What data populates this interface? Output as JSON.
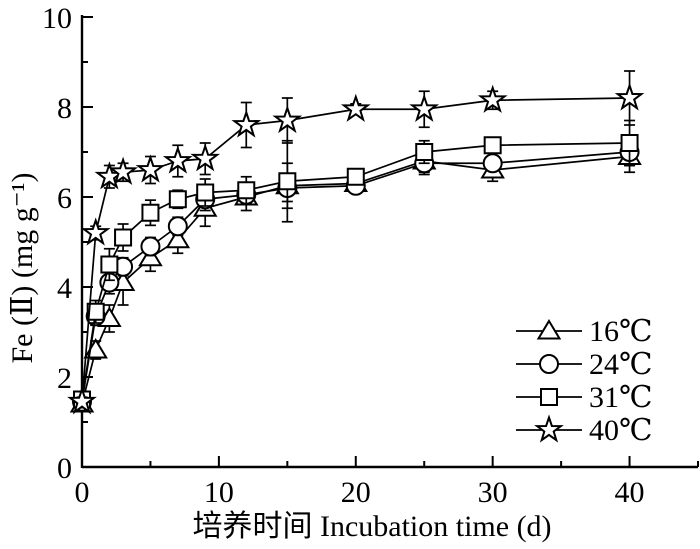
{
  "figure": {
    "background_color": "#ffffff",
    "foreground_color": "#000000"
  },
  "chart_data": {
    "type": "line",
    "title": "",
    "xlabel": "培养时间 Incubation time (d)",
    "ylabel": "Fe (Ⅱ) (mg g⁻¹)",
    "xlim": [
      0,
      45
    ],
    "ylim": [
      0,
      10
    ],
    "x_major_ticks": [
      0,
      10,
      20,
      30,
      40
    ],
    "x_minor_ticks": [
      5,
      15,
      25,
      35,
      45
    ],
    "y_major_ticks": [
      0,
      2,
      4,
      6,
      8,
      10
    ],
    "y_minor_ticks": [
      1,
      3,
      5,
      7,
      9
    ],
    "grid": false,
    "legend_position": "lower-right",
    "x": [
      0,
      1,
      2,
      3,
      5,
      7,
      9,
      12,
      15,
      20,
      25,
      30,
      40
    ],
    "series": [
      {
        "name": "16℃",
        "marker": "triangle",
        "color": "#000000",
        "values": [
          1.4,
          2.6,
          3.3,
          4.1,
          4.65,
          5.05,
          5.75,
          6.0,
          6.25,
          6.3,
          6.8,
          6.6,
          6.9
        ],
        "errors": [
          0.1,
          0.2,
          0.3,
          0.5,
          0.3,
          0.3,
          0.4,
          0.3,
          0.5,
          0.2,
          0.3,
          0.25,
          0.35
        ]
      },
      {
        "name": "24℃",
        "marker": "circle",
        "color": "#000000",
        "values": [
          1.45,
          3.35,
          4.1,
          4.45,
          4.9,
          5.35,
          5.95,
          6.05,
          6.2,
          6.25,
          6.75,
          6.75,
          7.0
        ],
        "errors": [
          0.1,
          0.2,
          0.25,
          0.2,
          0.2,
          0.2,
          0.25,
          0.2,
          0.3,
          0.12,
          0.2,
          0.15,
          0.3
        ]
      },
      {
        "name": "31℃",
        "marker": "square",
        "color": "#000000",
        "values": [
          1.5,
          3.45,
          4.5,
          5.1,
          5.65,
          5.95,
          6.1,
          6.15,
          6.35,
          6.45,
          7.0,
          7.15,
          7.2
        ],
        "errors": [
          0.1,
          0.25,
          0.35,
          0.3,
          0.28,
          0.2,
          0.3,
          0.3,
          0.9,
          0.12,
          0.25,
          0.12,
          0.5
        ]
      },
      {
        "name": "40℃",
        "marker": "star",
        "color": "#000000",
        "values": [
          1.45,
          5.2,
          6.45,
          6.55,
          6.6,
          6.8,
          6.85,
          7.6,
          7.7,
          7.95,
          7.95,
          8.15,
          8.2
        ],
        "errors": [
          0.1,
          0.15,
          0.25,
          0.2,
          0.3,
          0.35,
          0.35,
          0.5,
          0.5,
          0.12,
          0.4,
          0.2,
          0.6
        ]
      }
    ]
  }
}
